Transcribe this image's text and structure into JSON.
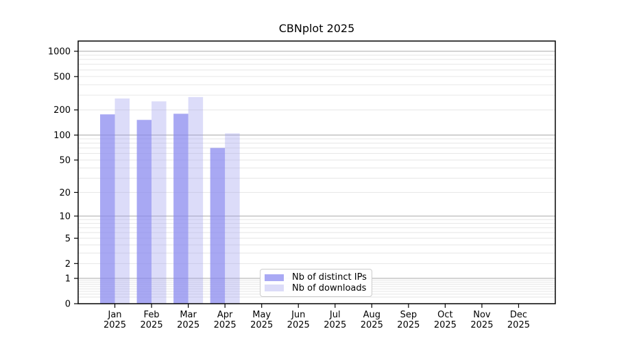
{
  "chart_data": {
    "type": "bar",
    "title": "CBNplot 2025",
    "year_label": "2025",
    "categories": [
      "Jan",
      "Feb",
      "Mar",
      "Apr",
      "May",
      "Jun",
      "Jul",
      "Aug",
      "Sep",
      "Oct",
      "Nov",
      "Dec"
    ],
    "series": [
      {
        "name": "Nb of distinct IPs",
        "color": "#a9a9f4",
        "fill": "rgba(134,134,238,0.72)",
        "values": [
          177,
          152,
          180,
          70,
          0,
          0,
          0,
          0,
          0,
          0,
          0,
          0
        ]
      },
      {
        "name": "Nb of downloads",
        "color": "#dcdcf8",
        "fill": "rgba(155,155,238,0.35)",
        "values": [
          274,
          253,
          285,
          105,
          0,
          0,
          0,
          0,
          0,
          0,
          0,
          0
        ]
      }
    ],
    "xlabel": "",
    "ylabel": "",
    "yscale": "log1p",
    "ylim": [
      0,
      1270
    ],
    "yticks": [
      0,
      1,
      2,
      5,
      10,
      20,
      50,
      100,
      200,
      500,
      1000
    ],
    "major_grid_values": [
      1,
      10,
      100,
      1000
    ],
    "grid": "both",
    "legend_position": "lower center-left inside plot",
    "colors": {
      "major_grid": "#b0b0b0",
      "minor_grid": "#e6e6e6",
      "spine": "#000000",
      "text": "#000000",
      "legend_border": "#cccccc",
      "background": "#ffffff"
    }
  }
}
